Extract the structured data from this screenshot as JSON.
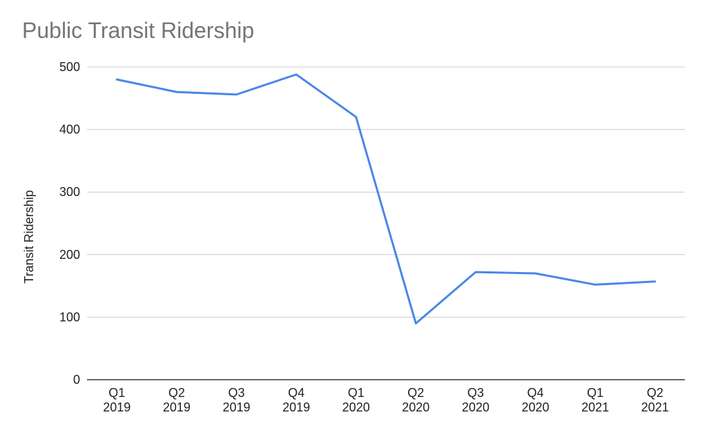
{
  "chart_data": {
    "type": "line",
    "title": "Public Transit Ridership",
    "xlabel": "",
    "ylabel": "Transit Ridership",
    "ylim": [
      0,
      500
    ],
    "yticks": [
      0,
      100,
      200,
      300,
      400,
      500
    ],
    "grid": true,
    "legend": "none",
    "line_color": "#4a86e8",
    "categories": [
      [
        "Q1",
        "2019"
      ],
      [
        "Q2",
        "2019"
      ],
      [
        "Q3",
        "2019"
      ],
      [
        "Q4",
        "2019"
      ],
      [
        "Q1",
        "2020"
      ],
      [
        "Q2",
        "2020"
      ],
      [
        "Q3",
        "2020"
      ],
      [
        "Q4",
        "2020"
      ],
      [
        "Q1",
        "2021"
      ],
      [
        "Q2",
        "2021"
      ]
    ],
    "series": [
      {
        "values": [
          480,
          460,
          456,
          488,
          420,
          90,
          172,
          170,
          152,
          157
        ]
      }
    ]
  }
}
